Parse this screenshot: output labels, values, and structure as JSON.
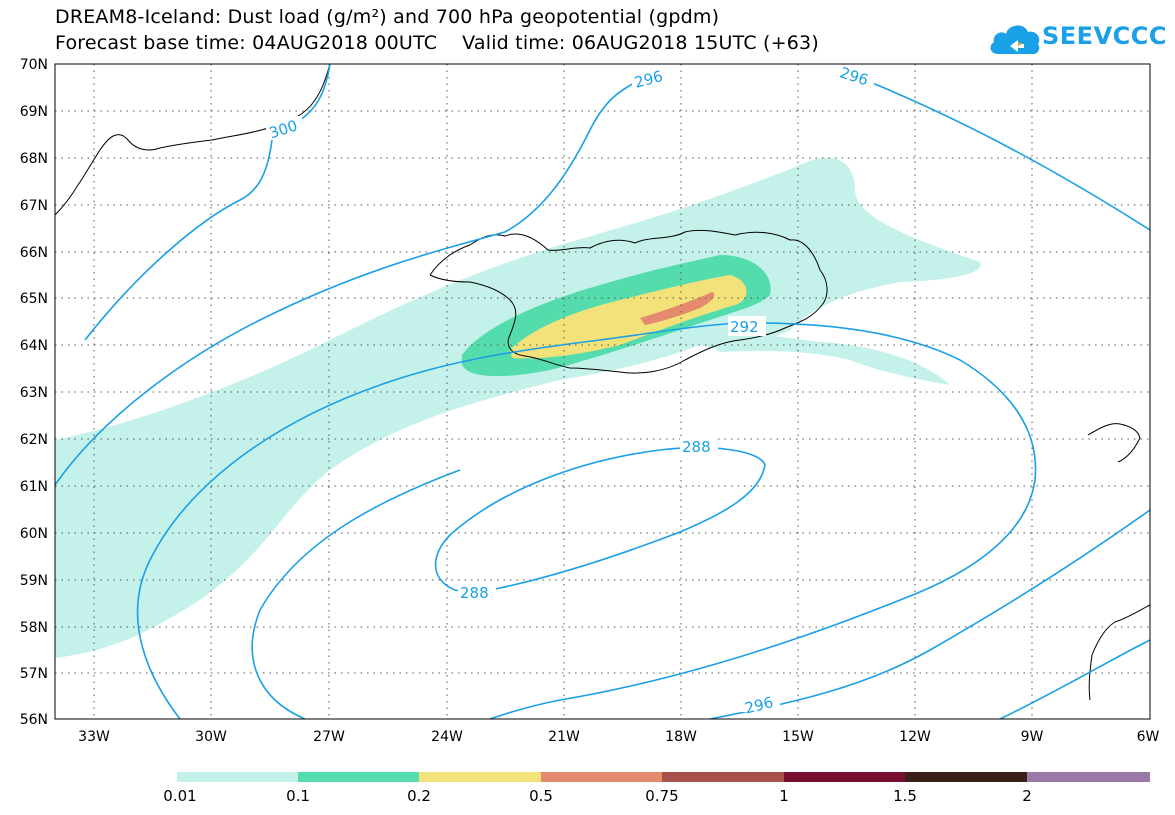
{
  "title": {
    "line1": "DREAM8-Iceland: Dust load (g/m²) and 700 hPa geopotential (gpdm)",
    "base_time_label": "Forecast base time: 04AUG2018 00UTC",
    "valid_time_label": "Valid time: 06AUG2018 15UTC (+63)"
  },
  "logo": {
    "text": "SEEVCCC",
    "icon": "cloud-logo-icon",
    "color": "#1aa0e6"
  },
  "map": {
    "lat_labels": [
      "70N",
      "69N",
      "68N",
      "67N",
      "66N",
      "65N",
      "64N",
      "63N",
      "62N",
      "61N",
      "60N",
      "59N",
      "58N",
      "57N",
      "56N"
    ],
    "lon_labels": [
      "33W",
      "30W",
      "27W",
      "24W",
      "21W",
      "18W",
      "15W",
      "12W",
      "9W",
      "6W"
    ],
    "contour_color": "#1aa0e6",
    "contour_labels": [
      "296",
      "296",
      "300",
      "292",
      "288",
      "288",
      "296"
    ],
    "dust_colors": [
      "#c4f1ea",
      "#55dcac",
      "#f3e27a",
      "#e58a6c"
    ]
  },
  "colorbar": {
    "colors": [
      "#c4f1ea",
      "#55dcac",
      "#f3e27a",
      "#e58a6c",
      "#a8504a",
      "#7a1030",
      "#3a2018",
      "#9a78a8"
    ],
    "labels": [
      "0.01",
      "0.1",
      "0.2",
      "0.5",
      "0.75",
      "1",
      "1.5",
      "2"
    ]
  }
}
